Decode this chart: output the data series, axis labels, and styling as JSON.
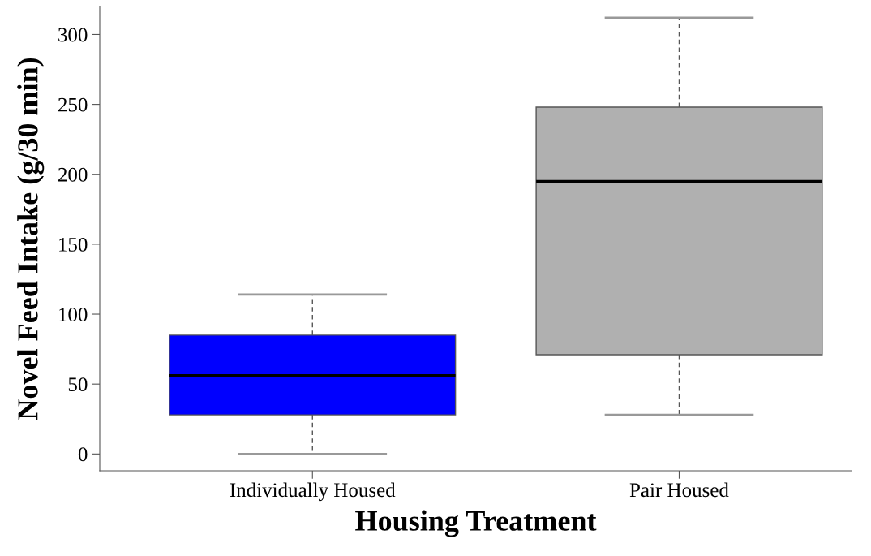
{
  "chart_data": {
    "type": "box",
    "xlabel": "Housing Treatment",
    "ylabel": "Novel Feed Intake (g/30 min)",
    "categories": [
      "Individually Housed",
      "Pair Housed"
    ],
    "boxes": [
      {
        "low": 0,
        "q1": 28,
        "median": 56,
        "q3": 85,
        "high": 114
      },
      {
        "low": 28,
        "q1": 71,
        "median": 195,
        "q3": 248,
        "high": 312
      }
    ],
    "colors": [
      "#0000ff",
      "#b0b0b0"
    ],
    "ylim": [
      -12,
      320
    ],
    "yticks": [
      0,
      50,
      100,
      150,
      200,
      250,
      300
    ]
  }
}
